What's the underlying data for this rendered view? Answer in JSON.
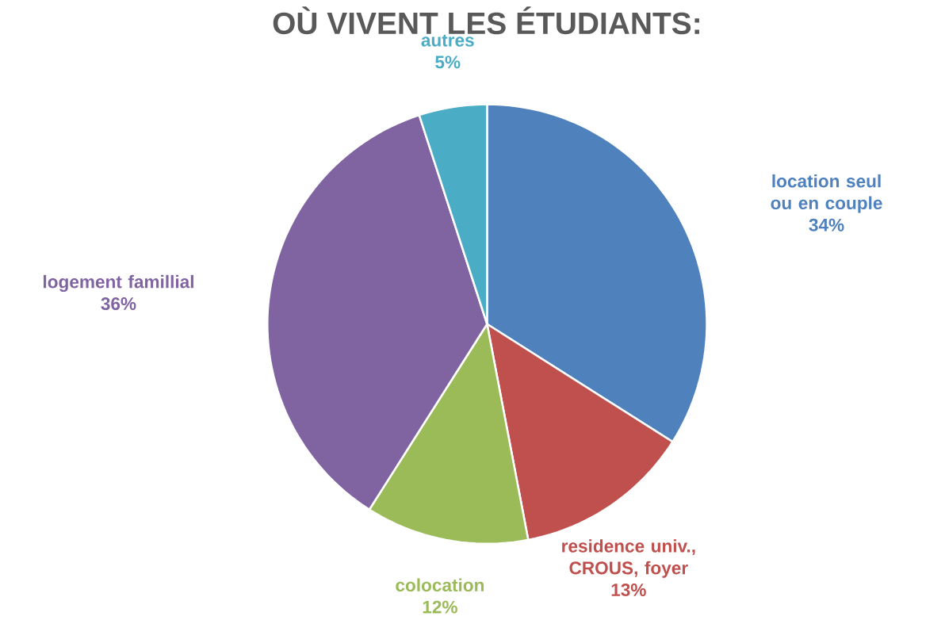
{
  "chart_data": {
    "type": "pie",
    "title": "OÙ VIVENT LES ÉTUDIANTS:",
    "categories": [
      "location seul ou en couple",
      "residence  univ., CROUS, foyer",
      "colocation",
      "logement famillial",
      "autres"
    ],
    "values": [
      34,
      13,
      12,
      36,
      5
    ],
    "value_labels": [
      "34%",
      "13%",
      "12%",
      "36%",
      "5%"
    ],
    "colors": [
      "#4f81bd",
      "#c0504d",
      "#9bbb59",
      "#8064a2",
      "#4bacc6"
    ]
  }
}
